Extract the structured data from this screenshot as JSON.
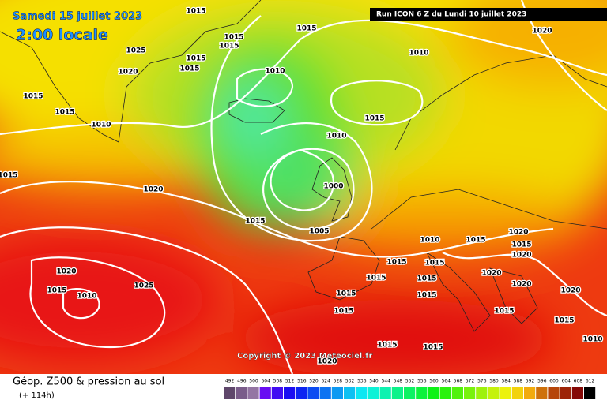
{
  "header": {
    "date": "Samedi 15 juillet 2023",
    "time": "2:00 locale",
    "run": "Run ICON 6 Z du Lundi 10 juillet 2023"
  },
  "copyright": "Copyright © 2023 Meteociel.fr",
  "isobar_labels": [
    "1015",
    "1015",
    "1015",
    "1015",
    "1015",
    "1025",
    "1020",
    "1015",
    "1015",
    "1010",
    "1015",
    "1010",
    "1020",
    "1010",
    "1015",
    "1010",
    "1015",
    "1020",
    "1000",
    "1015",
    "1005",
    "1010",
    "1015",
    "1020",
    "1015",
    "1015",
    "1015",
    "1020",
    "1020",
    "1020",
    "1015",
    "1015",
    "1020",
    "1015",
    "1010",
    "1025",
    "1015",
    "1015",
    "1020",
    "1015",
    "1015",
    "1015",
    "1015",
    "1015",
    "1010",
    "1020"
  ],
  "legend": {
    "title": "Géop. Z500 & pression au sol",
    "subtitle": "(+ 114h)",
    "values": [
      492,
      496,
      500,
      504,
      508,
      512,
      516,
      520,
      524,
      528,
      532,
      536,
      540,
      544,
      548,
      552,
      556,
      560,
      564,
      568,
      572,
      576,
      580,
      584,
      588,
      592,
      596,
      600,
      604,
      608,
      612
    ]
  }
}
